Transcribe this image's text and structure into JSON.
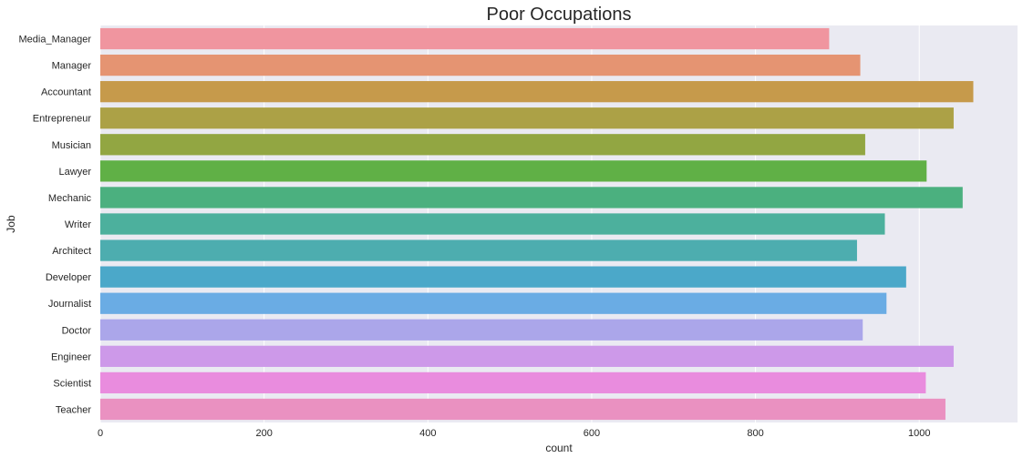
{
  "chart_data": {
    "type": "bar",
    "orientation": "horizontal",
    "title": "Poor Occupations",
    "xlabel": "count",
    "ylabel": "Job",
    "xlim": [
      0,
      1120
    ],
    "xticks": [
      0,
      200,
      400,
      600,
      800,
      1000
    ],
    "grid": true,
    "categories": [
      "Media_Manager",
      "Manager",
      "Accountant",
      "Entrepreneur",
      "Musician",
      "Lawyer",
      "Mechanic",
      "Writer",
      "Architect",
      "Developer",
      "Journalist",
      "Doctor",
      "Engineer",
      "Scientist",
      "Teacher"
    ],
    "values": [
      890,
      928,
      1066,
      1042,
      934,
      1009,
      1053,
      958,
      924,
      984,
      960,
      931,
      1042,
      1008,
      1032
    ],
    "colors": [
      "#f0959f",
      "#e59472",
      "#c69a4b",
      "#aca146",
      "#92a642",
      "#60b046",
      "#4bb07f",
      "#4cb09d",
      "#4dadaf",
      "#4ba8c9",
      "#6aace4",
      "#aba6ea",
      "#cd99e9",
      "#e98cde",
      "#ea91c1"
    ]
  }
}
